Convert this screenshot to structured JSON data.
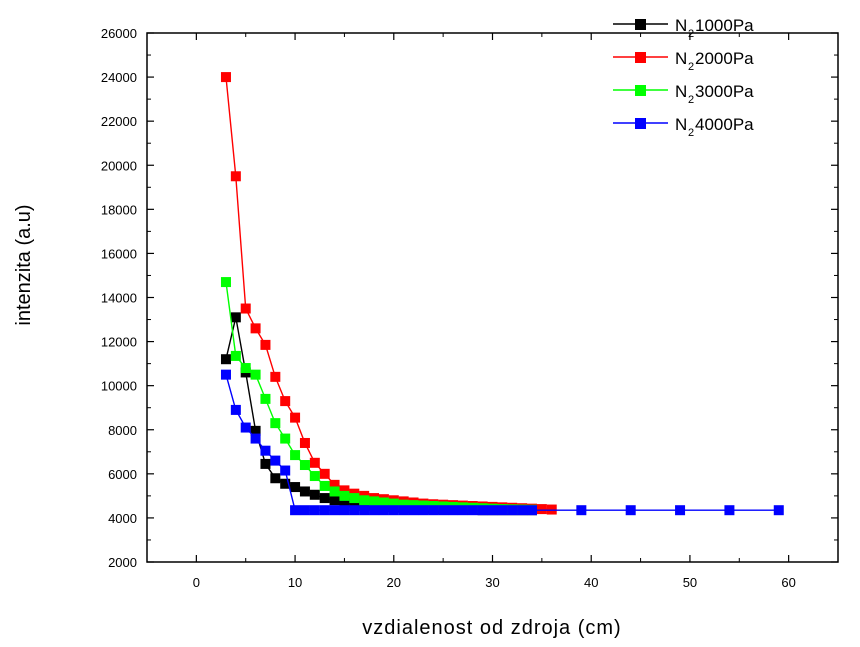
{
  "chart_data": {
    "type": "line",
    "title": "",
    "xlabel": "vzdialenost od zdroja (cm)",
    "ylabel": "intenzita (a.u)",
    "xlim": [
      -5,
      65
    ],
    "ylim": [
      2000,
      26000
    ],
    "x_ticks": [
      0,
      10,
      20,
      30,
      40,
      50,
      60
    ],
    "y_ticks": [
      2000,
      4000,
      6000,
      8000,
      10000,
      12000,
      14000,
      16000,
      18000,
      20000,
      22000,
      24000,
      26000
    ],
    "x_tick_labels": [
      "0",
      "10",
      "20",
      "30",
      "40",
      "50",
      "60"
    ],
    "y_tick_labels": [
      "2000",
      "4000",
      "6000",
      "8000",
      "10000",
      "12000",
      "14000",
      "16000",
      "18000",
      "20000",
      "22000",
      "24000",
      "26000"
    ],
    "grid": false,
    "legend_position": "top-right",
    "series": [
      {
        "name_main": "N",
        "name_sub": "2",
        "name_rest": " 1000Pa",
        "color": "#000000",
        "x": [
          3,
          4,
          5,
          6,
          7,
          8,
          9,
          10,
          11,
          12,
          13,
          14,
          15,
          16,
          17,
          18,
          19,
          20,
          21,
          22,
          23,
          24,
          25,
          26,
          27,
          28,
          29,
          30,
          31,
          32,
          33,
          34
        ],
        "y": [
          11200,
          13100,
          10600,
          7950,
          6450,
          5800,
          5550,
          5400,
          5200,
          5050,
          4900,
          4800,
          4700,
          4650,
          4600,
          4550,
          4500,
          4480,
          4460,
          4440,
          4420,
          4400,
          4390,
          4380,
          4370,
          4360,
          4350,
          4350,
          4350,
          4350,
          4350,
          4350
        ]
      },
      {
        "name_main": "N",
        "name_sub": "2",
        "name_rest": " 2000Pa",
        "color": "#ff0000",
        "x": [
          3,
          4,
          5,
          6,
          7,
          8,
          9,
          10,
          11,
          12,
          13,
          14,
          15,
          16,
          17,
          18,
          19,
          20,
          21,
          22,
          23,
          24,
          25,
          26,
          27,
          28,
          29,
          30,
          31,
          32,
          33,
          34,
          35,
          36
        ],
        "y": [
          24000,
          19500,
          13500,
          12600,
          11850,
          10400,
          9300,
          8550,
          7400,
          6500,
          6000,
          5500,
          5250,
          5100,
          5000,
          4900,
          4850,
          4800,
          4750,
          4700,
          4650,
          4620,
          4600,
          4580,
          4560,
          4540,
          4520,
          4500,
          4480,
          4460,
          4440,
          4420,
          4400,
          4380
        ]
      },
      {
        "name_main": "N",
        "name_sub": "2",
        "name_rest": " 3000Pa",
        "color": "#00ff00",
        "x": [
          3,
          4,
          5,
          6,
          7,
          8,
          9,
          10,
          11,
          12,
          13,
          14,
          15,
          16,
          17,
          18,
          19,
          20,
          21,
          22,
          23,
          24,
          25,
          26,
          27,
          28,
          29,
          30,
          31,
          32,
          33,
          34
        ],
        "y": [
          14700,
          11350,
          10800,
          10500,
          9400,
          8300,
          7600,
          6850,
          6400,
          5900,
          5450,
          5200,
          5000,
          4900,
          4800,
          4750,
          4700,
          4650,
          4600,
          4580,
          4560,
          4540,
          4520,
          4500,
          4480,
          4460,
          4440,
          4420,
          4400,
          4390,
          4380,
          4370
        ]
      },
      {
        "name_main": "N",
        "name_sub": "2",
        "name_rest": " 4000Pa",
        "color": "#0000ff",
        "x": [
          3,
          4,
          5,
          6,
          7,
          8,
          9,
          10,
          11,
          12,
          13,
          14,
          15,
          16,
          17,
          18,
          19,
          20,
          21,
          22,
          23,
          24,
          25,
          26,
          27,
          28,
          29,
          30,
          31,
          32,
          33,
          34,
          39,
          44,
          49,
          54,
          59
        ],
        "y": [
          10500,
          8900,
          8100,
          7600,
          7050,
          6600,
          6150,
          4350,
          4350,
          4350,
          4350,
          4350,
          4350,
          4350,
          4350,
          4350,
          4350,
          4350,
          4350,
          4350,
          4350,
          4350,
          4350,
          4350,
          4350,
          4350,
          4350,
          4350,
          4350,
          4350,
          4350,
          4350,
          4350,
          4350,
          4350,
          4350,
          4350
        ]
      }
    ]
  }
}
